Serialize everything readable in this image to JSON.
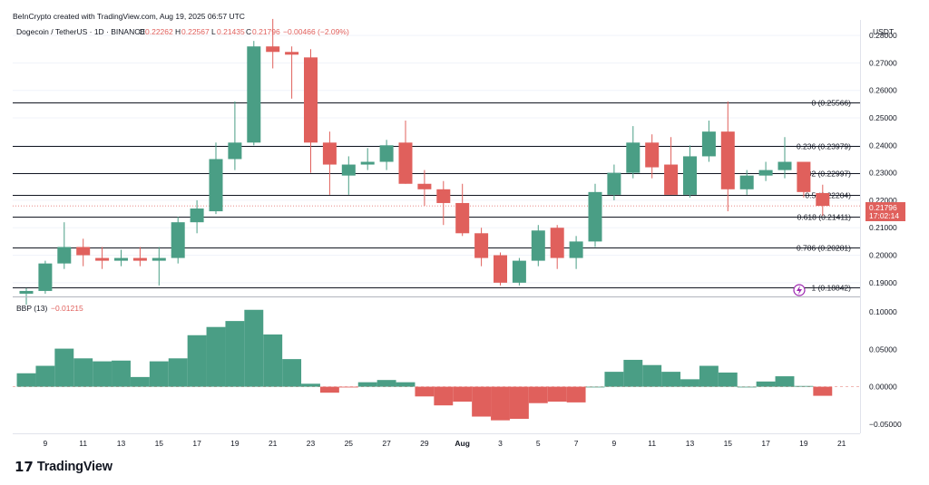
{
  "header": {
    "caption": "BeInCrypto created with TradingView.com, Aug 19, 2025 06:57 UTC"
  },
  "legend": {
    "symbol": "Dogecoin / TetherUS · 1D · BINANCE",
    "o_label": "O",
    "o": "0.22262",
    "h_label": "H",
    "h": "0.22567",
    "l_label": "L",
    "l": "0.21435",
    "c_label": "C",
    "c": "0.21796",
    "change": "−0.00466 (−2.09%)"
  },
  "indicator": {
    "name": "BBP (13)",
    "value": "−0.01215"
  },
  "price_axis": {
    "unit": "USDT",
    "ticks": [
      "0.28000",
      "0.27000",
      "0.26000",
      "0.25000",
      "0.24000",
      "0.23000",
      "0.22000",
      "0.21000",
      "0.20000",
      "0.19000"
    ],
    "last_price": "0.21796",
    "countdown": "17:02:14"
  },
  "bbp_axis": {
    "ticks": [
      "0.10000",
      "0.05000",
      "0.00000",
      "−0.05000"
    ]
  },
  "time_axis": {
    "labels": [
      "9",
      "11",
      "13",
      "15",
      "17",
      "19",
      "21",
      "23",
      "25",
      "27",
      "29",
      "Aug",
      "3",
      "5",
      "7",
      "9",
      "11",
      "13",
      "15",
      "17",
      "19",
      "21"
    ]
  },
  "fib_levels": [
    {
      "label": "0 (0.25566)",
      "value": 0.25566
    },
    {
      "label": "0.236 (0.23979)",
      "value": 0.23979
    },
    {
      "label": "0.382 (0.22997)",
      "value": 0.22997
    },
    {
      "label": "0.5 (0.22204)",
      "value": 0.22204
    },
    {
      "label": "0.618 (0.21411)",
      "value": 0.21411
    },
    {
      "label": "0.786 (0.20281)",
      "value": 0.20281
    },
    {
      "label": "1 (0.18842)",
      "value": 0.18842
    }
  ],
  "colors": {
    "up": "#4a9e85",
    "down": "#e0605c",
    "grid": "#f0f3fa",
    "text": "#131722",
    "price_tag": "#e0605c",
    "lightning": "#9c27b0"
  },
  "logo": {
    "text": "TradingView",
    "mark": "17"
  },
  "chart_data": {
    "type": "candlestick",
    "title": "Dogecoin / TetherUS · 1D · BINANCE",
    "y_unit": "USDT",
    "ylim": [
      0.185,
      0.283
    ],
    "x_dates": [
      "2025-07-08",
      "2025-07-09",
      "2025-07-10",
      "2025-07-11",
      "2025-07-12",
      "2025-07-13",
      "2025-07-14",
      "2025-07-15",
      "2025-07-16",
      "2025-07-17",
      "2025-07-18",
      "2025-07-19",
      "2025-07-20",
      "2025-07-21",
      "2025-07-22",
      "2025-07-23",
      "2025-07-24",
      "2025-07-25",
      "2025-07-26",
      "2025-07-27",
      "2025-07-28",
      "2025-07-29",
      "2025-07-30",
      "2025-07-31",
      "2025-08-01",
      "2025-08-02",
      "2025-08-03",
      "2025-08-04",
      "2025-08-05",
      "2025-08-06",
      "2025-08-07",
      "2025-08-08",
      "2025-08-09",
      "2025-08-10",
      "2025-08-11",
      "2025-08-12",
      "2025-08-13",
      "2025-08-14",
      "2025-08-15",
      "2025-08-16",
      "2025-08-17",
      "2025-08-18",
      "2025-08-19"
    ],
    "candles": [
      [
        0.186,
        0.188,
        0.182,
        0.187
      ],
      [
        0.187,
        0.198,
        0.186,
        0.197
      ],
      [
        0.197,
        0.212,
        0.195,
        0.203
      ],
      [
        0.203,
        0.206,
        0.196,
        0.2
      ],
      [
        0.199,
        0.203,
        0.195,
        0.198
      ],
      [
        0.198,
        0.202,
        0.196,
        0.199
      ],
      [
        0.199,
        0.203,
        0.196,
        0.198
      ],
      [
        0.198,
        0.203,
        0.189,
        0.199
      ],
      [
        0.199,
        0.214,
        0.197,
        0.212
      ],
      [
        0.212,
        0.22,
        0.208,
        0.217
      ],
      [
        0.216,
        0.241,
        0.215,
        0.235
      ],
      [
        0.235,
        0.256,
        0.231,
        0.241
      ],
      [
        0.241,
        0.278,
        0.24,
        0.276
      ],
      [
        0.276,
        0.286,
        0.268,
        0.274
      ],
      [
        0.274,
        0.276,
        0.257,
        0.273
      ],
      [
        0.272,
        0.275,
        0.23,
        0.241
      ],
      [
        0.241,
        0.245,
        0.222,
        0.233
      ],
      [
        0.229,
        0.236,
        0.222,
        0.233
      ],
      [
        0.233,
        0.239,
        0.231,
        0.234
      ],
      [
        0.234,
        0.242,
        0.231,
        0.24
      ],
      [
        0.241,
        0.249,
        0.226,
        0.226
      ],
      [
        0.226,
        0.231,
        0.218,
        0.224
      ],
      [
        0.224,
        0.227,
        0.211,
        0.219
      ],
      [
        0.219,
        0.226,
        0.207,
        0.208
      ],
      [
        0.208,
        0.21,
        0.196,
        0.199
      ],
      [
        0.2,
        0.201,
        0.189,
        0.19
      ],
      [
        0.19,
        0.199,
        0.189,
        0.198
      ],
      [
        0.198,
        0.211,
        0.196,
        0.209
      ],
      [
        0.21,
        0.211,
        0.195,
        0.199
      ],
      [
        0.199,
        0.207,
        0.195,
        0.205
      ],
      [
        0.205,
        0.226,
        0.203,
        0.223
      ],
      [
        0.222,
        0.233,
        0.22,
        0.23
      ],
      [
        0.23,
        0.247,
        0.228,
        0.241
      ],
      [
        0.241,
        0.244,
        0.228,
        0.232
      ],
      [
        0.233,
        0.243,
        0.222,
        0.222
      ],
      [
        0.222,
        0.24,
        0.221,
        0.236
      ],
      [
        0.236,
        0.249,
        0.234,
        0.245
      ],
      [
        0.245,
        0.256,
        0.216,
        0.224
      ],
      [
        0.224,
        0.231,
        0.222,
        0.229
      ],
      [
        0.229,
        0.234,
        0.227,
        0.231
      ],
      [
        0.231,
        0.243,
        0.228,
        0.234
      ],
      [
        0.234,
        0.234,
        0.221,
        0.223
      ],
      [
        0.22262,
        0.22567,
        0.21435,
        0.21796
      ]
    ],
    "bbp_ylim": [
      -0.06,
      0.11
    ],
    "bbp_values": [
      0.018,
      0.028,
      0.051,
      0.038,
      0.034,
      0.035,
      0.013,
      0.034,
      0.038,
      0.069,
      0.08,
      0.088,
      0.103,
      0.07,
      0.037,
      0.004,
      -0.008,
      -0.001,
      0.006,
      0.009,
      0.006,
      -0.013,
      -0.025,
      -0.02,
      -0.04,
      -0.045,
      -0.043,
      -0.022,
      -0.02,
      -0.021,
      0.0,
      0.02,
      0.036,
      0.029,
      0.02,
      0.01,
      0.028,
      0.019,
      0.0,
      0.007,
      0.014,
      0.001,
      -0.01215
    ]
  }
}
